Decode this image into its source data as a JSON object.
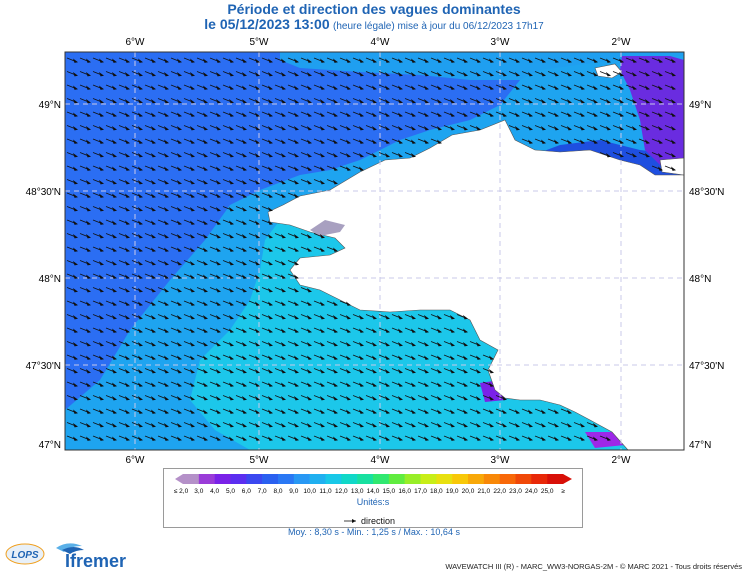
{
  "header": {
    "title": "Période et direction des vagues dominantes",
    "date": "le 05/12/2023 13:00",
    "note": "(heure légale) mise à jour du 06/12/2023 17h17"
  },
  "map": {
    "lon_labels": [
      "6°W",
      "5°W",
      "4°W",
      "3°W",
      "2°W"
    ],
    "lat_labels": [
      "49°N",
      "48°30'N",
      "48°N",
      "47°30'N",
      "47°N"
    ],
    "colors": {
      "land": "#ffffff",
      "offshore_blue": "#2b6ef3",
      "mid_blue": "#1ea4f0",
      "coastal_cyan": "#1cc7ea",
      "deep_blue": "#1e4fe0",
      "violet": "#6a2ce0",
      "magenta": "#9d28e8",
      "light_grey": "#a8a0c0",
      "grid": "#c8c8e8",
      "arrow": "#111111"
    }
  },
  "legend": {
    "ticks": [
      "≤ 2,0",
      "3,0",
      "4,0",
      "5,0",
      "6,0",
      "7,0",
      "8,0",
      "9,0",
      "10,0",
      "11,0",
      "12,0",
      "13,0",
      "14,0",
      "15,0",
      "16,0",
      "17,0",
      "18,0",
      "19,0",
      "20,0",
      "21,0",
      "22,0",
      "23,0",
      "24,0",
      "25,0",
      "≥"
    ],
    "colors": [
      "#b490c8",
      "#9a3cd8",
      "#7a22e8",
      "#5b2ef0",
      "#3b48f0",
      "#2a60f0",
      "#2a78f4",
      "#2898f4",
      "#20b0f0",
      "#18c8e8",
      "#10d8c8",
      "#18e0a0",
      "#30e870",
      "#60ec40",
      "#98ee28",
      "#c8ee18",
      "#e8e010",
      "#f8c808",
      "#f8a808",
      "#f88808",
      "#f86808",
      "#f04808",
      "#e82808",
      "#d81008"
    ],
    "unit_label": "Unités:s",
    "direction_label": "direction"
  },
  "stats": {
    "text": "Moy. : 8,30 s   -   Min. : 1,25 s / Max. : 10,64 s"
  },
  "footer": {
    "text": "WAVEWATCH III (R) - MARC_WW3-NORGAS-2M - © MARC 2021 - Tous droits réservés"
  },
  "logos": {
    "lops": "LOPS",
    "ifremer": "Ifremer"
  }
}
